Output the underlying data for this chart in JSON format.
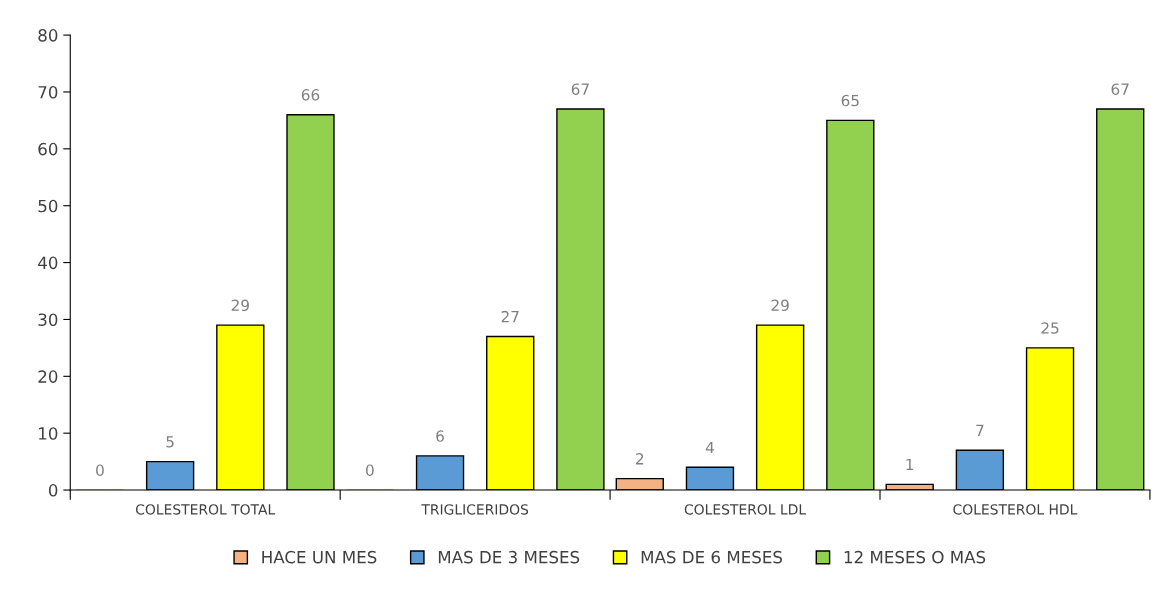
{
  "chart_data": {
    "type": "bar",
    "categories": [
      "COLESTEROL TOTAL",
      "TRIGLICERIDOS",
      "COLESTEROL LDL",
      "COLESTEROL HDL"
    ],
    "series": [
      {
        "name": "HACE UN MES",
        "color": "#f4b183",
        "values": [
          0,
          0,
          2,
          1
        ]
      },
      {
        "name": "MAS DE 3 MESES",
        "color": "#5b9bd5",
        "values": [
          5,
          6,
          4,
          7
        ]
      },
      {
        "name": "MAS DE 6 MESES",
        "color": "#ffff00",
        "values": [
          29,
          27,
          29,
          25
        ]
      },
      {
        "name": "12 MESES O MAS",
        "color": "#92d050",
        "values": [
          66,
          67,
          65,
          67
        ]
      }
    ],
    "ylim": [
      0,
      80
    ],
    "yticks": [
      0,
      10,
      20,
      30,
      40,
      50,
      60,
      70,
      80
    ],
    "data_labels": true,
    "grid": false,
    "legend": "bottom"
  }
}
